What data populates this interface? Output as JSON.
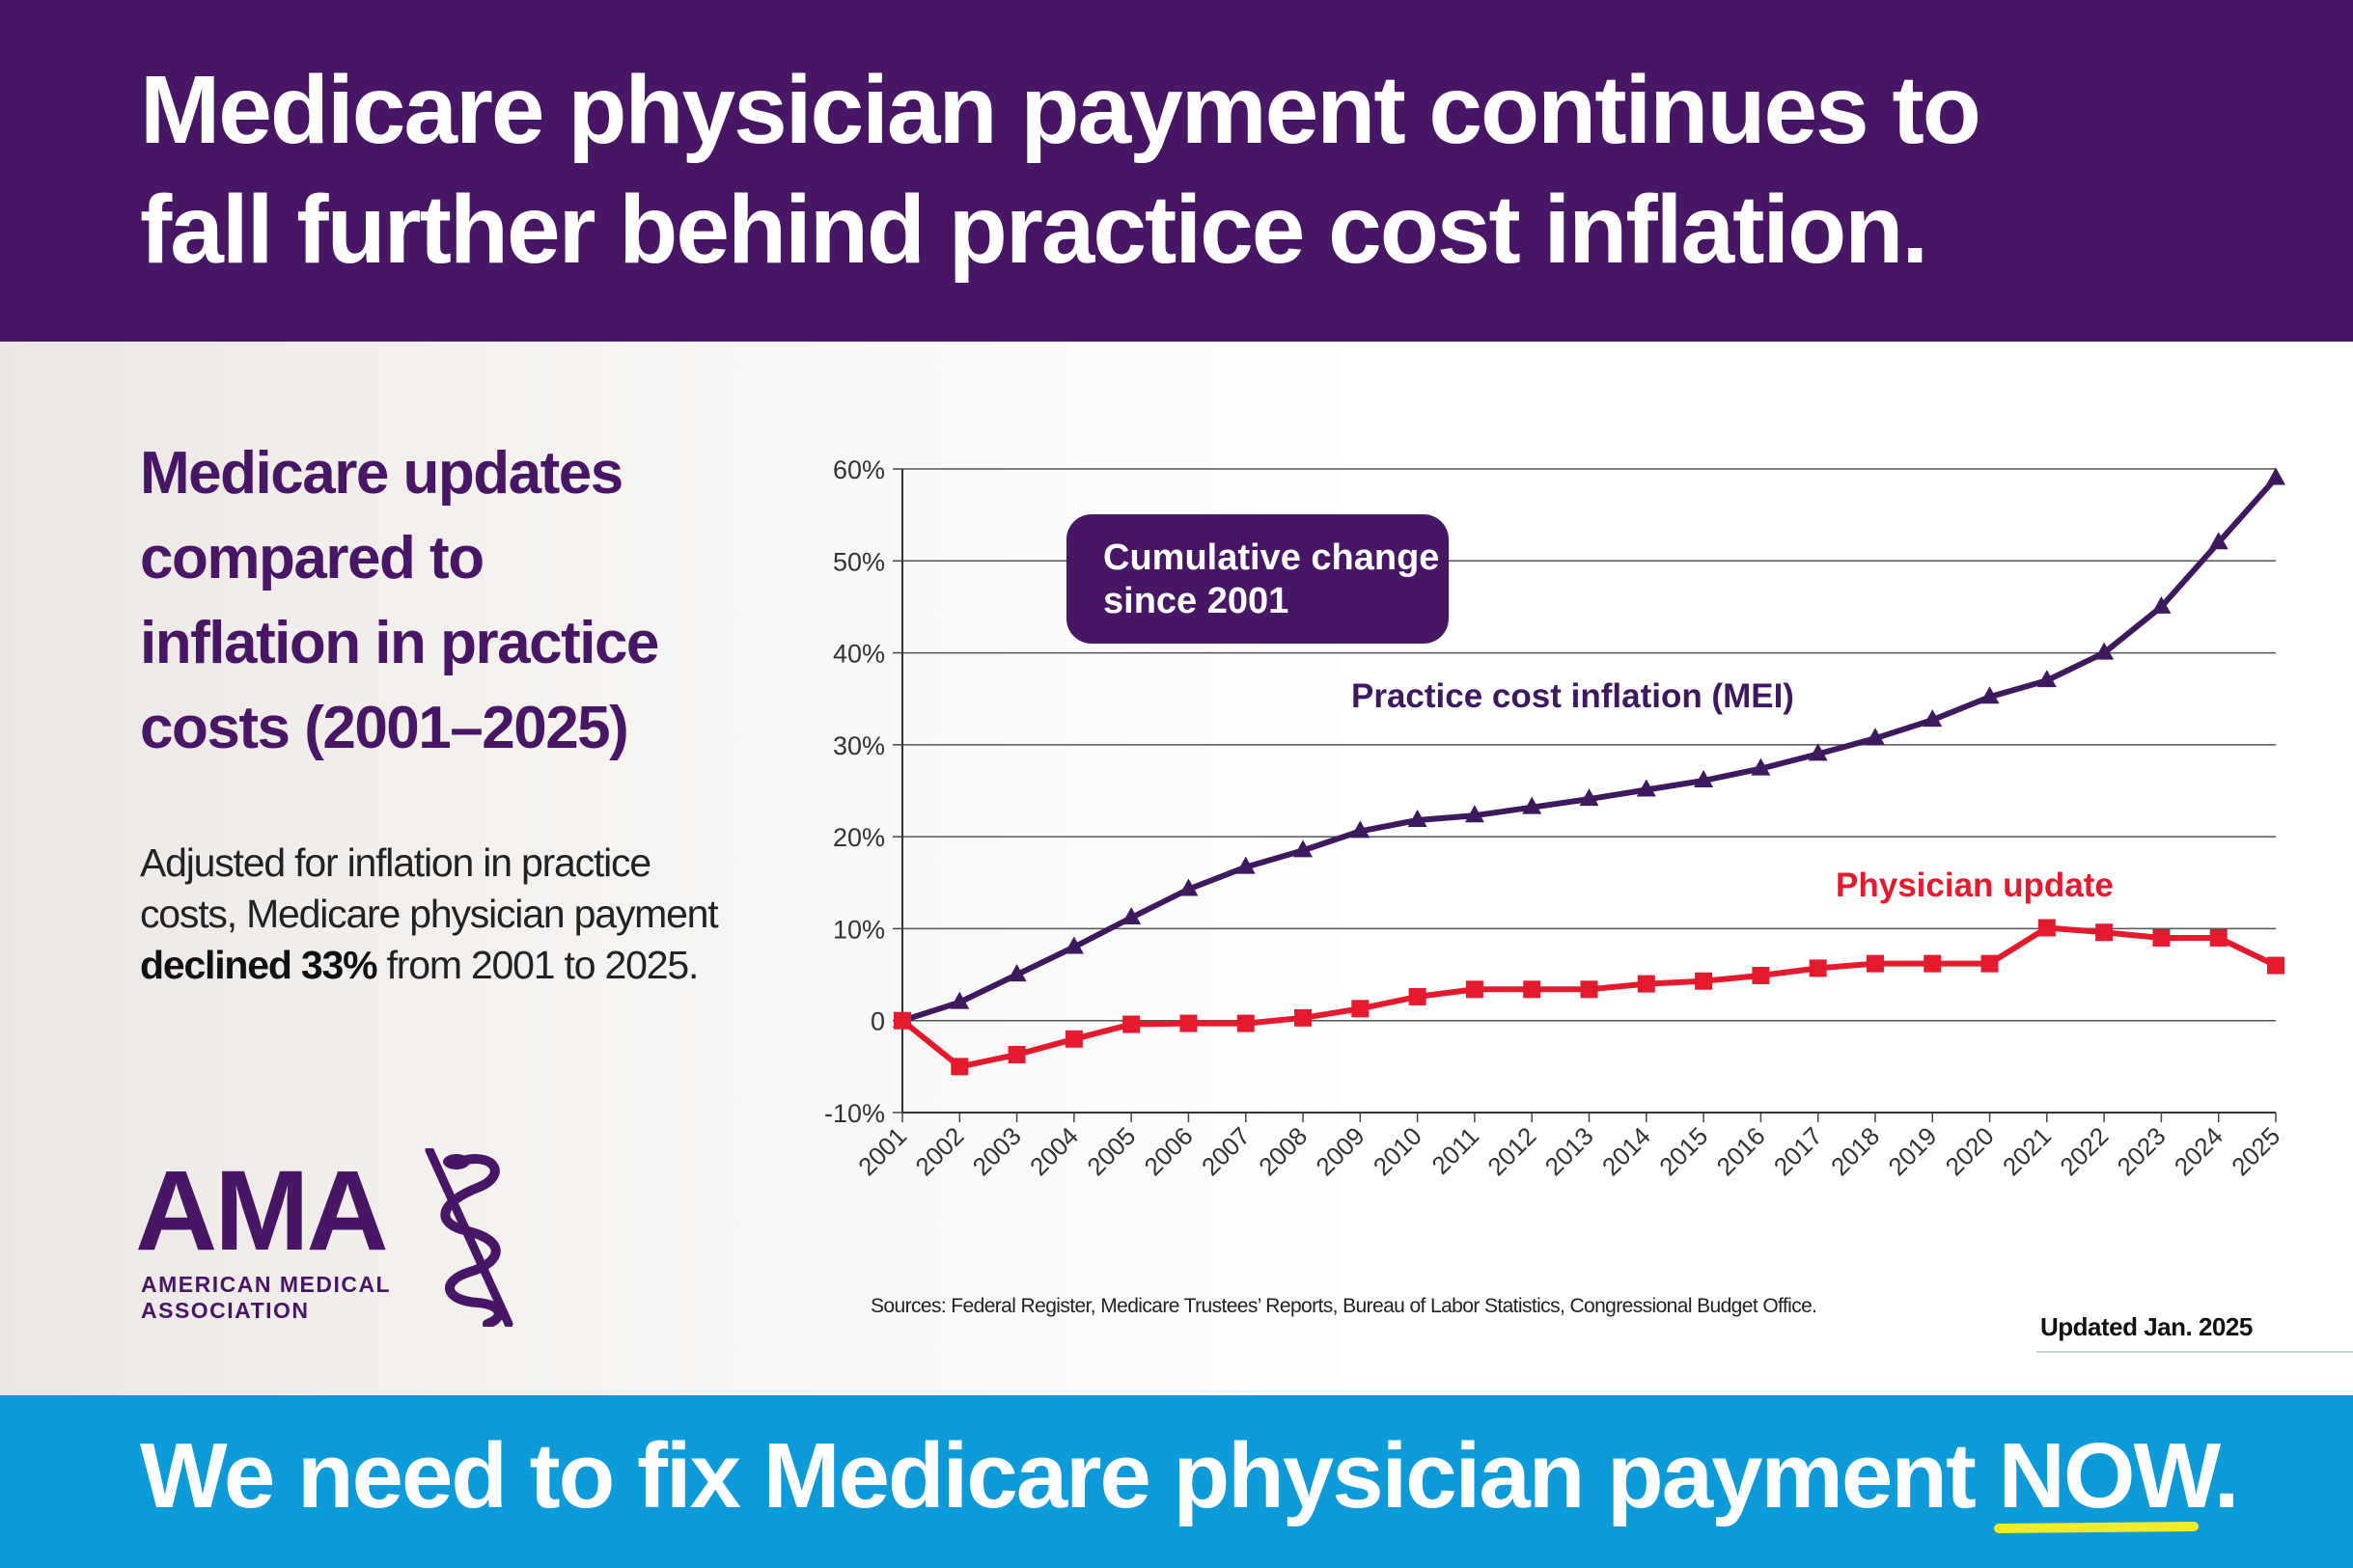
{
  "header": {
    "line1": "Medicare physician payment continues to",
    "line2": "fall further behind practice cost inflation."
  },
  "sidebar": {
    "subheading_lines": [
      "Medicare updates",
      "compared to",
      "inflation in practice",
      "costs (2001–2025)"
    ],
    "body_line1": "Adjusted for inflation in practice",
    "body_line2": "costs, Medicare physician payment",
    "body_strong": "declined 33%",
    "body_rest": " from 2001 to 2025."
  },
  "logo": {
    "letters": "AMA",
    "name_line1": "AMERICAN MEDICAL",
    "name_line2": "ASSOCIATION"
  },
  "chart_data": {
    "type": "line",
    "title": "",
    "callout": [
      "Cumulative change",
      "since 2001"
    ],
    "xlabel": "",
    "ylabel": "",
    "ylim": [
      -10,
      60
    ],
    "yticks": [
      -10,
      0,
      10,
      20,
      30,
      40,
      50,
      60
    ],
    "ytick_labels": [
      "-10%",
      "0",
      "10%",
      "20%",
      "30%",
      "40%",
      "50%",
      "60%"
    ],
    "grid": true,
    "categories": [
      "2001",
      "2002",
      "2003",
      "2004",
      "2005",
      "2006",
      "2007",
      "2008",
      "2009",
      "2010",
      "2011",
      "2012",
      "2013",
      "2014",
      "2015",
      "2016",
      "2017",
      "2018",
      "2019",
      "2020",
      "2021",
      "2022",
      "2023",
      "2024",
      "2025"
    ],
    "series": [
      {
        "name": "Practice cost inflation (MEI)",
        "color": "#3d1a5e",
        "marker": "triangle",
        "values": [
          0,
          2,
          5,
          8,
          11.2,
          14.3,
          16.7,
          18.5,
          20.6,
          21.8,
          22.3,
          23.2,
          24.1,
          25.1,
          26.1,
          27.4,
          29,
          30.7,
          32.7,
          35.2,
          37,
          40,
          45,
          52,
          59
        ]
      },
      {
        "name": "Physician update",
        "color": "#e41b2e",
        "marker": "square",
        "values": [
          0,
          -5,
          -3.7,
          -2,
          -0.4,
          -0.3,
          -0.3,
          0.3,
          1.3,
          2.6,
          3.4,
          3.4,
          3.4,
          4,
          4.3,
          4.9,
          5.7,
          6.2,
          6.2,
          6.2,
          10.1,
          9.6,
          9,
          9,
          6
        ]
      }
    ]
  },
  "footer": {
    "sources": "Sources: Federal Register, Medicare Trustees’ Reports, Bureau of Labor Statistics, Congressional Budget Office.",
    "updated": "Updated Jan. 2025",
    "cta_main": "We need to fix Medicare physician payment ",
    "cta_now": "NOW",
    "cta_end": "."
  },
  "colors": {
    "purple": "#471766",
    "blue": "#0d9ad9",
    "red": "#e41b2e",
    "yellow": "#f0ec2a"
  }
}
